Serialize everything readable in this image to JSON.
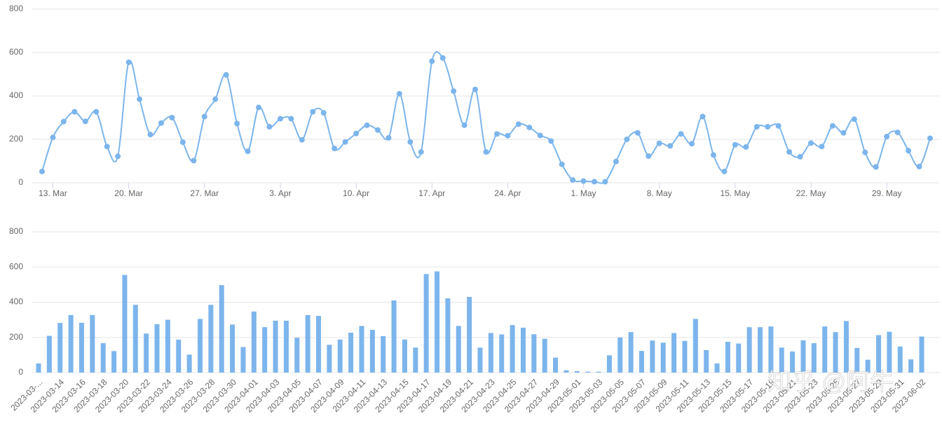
{
  "chart_data": [
    {
      "type": "line",
      "color": "#7cb5ec",
      "grid": true,
      "smooth": true,
      "markers": true,
      "ylim": [
        0,
        800
      ],
      "yticks": [
        0,
        200,
        400,
        600,
        800
      ],
      "xticks": [
        {
          "value": 1,
          "label": "13. Mar"
        },
        {
          "value": 8,
          "label": "20. Mar"
        },
        {
          "value": 15,
          "label": "27. Mar"
        },
        {
          "value": 22,
          "label": "3. Apr"
        },
        {
          "value": 29,
          "label": "10. Apr"
        },
        {
          "value": 36,
          "label": "17. Apr"
        },
        {
          "value": 43,
          "label": "24. Apr"
        },
        {
          "value": 50,
          "label": "1. May"
        },
        {
          "value": 57,
          "label": "8. May"
        },
        {
          "value": 64,
          "label": "15. May"
        },
        {
          "value": 71,
          "label": "22. May"
        },
        {
          "value": 78,
          "label": "29. May"
        }
      ],
      "values": [
        52,
        209,
        282,
        327,
        283,
        327,
        167,
        122,
        555,
        385,
        222,
        275,
        300,
        187,
        102,
        305,
        385,
        497,
        273,
        145,
        347,
        258,
        295,
        295,
        198,
        327,
        322,
        158,
        188,
        227,
        265,
        243,
        207,
        410,
        188,
        142,
        560,
        575,
        422,
        265,
        430,
        142,
        225,
        217,
        270,
        255,
        218,
        192,
        85,
        13,
        8,
        5,
        5,
        98,
        200,
        230,
        123,
        182,
        170,
        225,
        180,
        305,
        128,
        52,
        175,
        165,
        258,
        258,
        262,
        142,
        120,
        183,
        167,
        262,
        230,
        293,
        140,
        73,
        213,
        232,
        148,
        75,
        205
      ]
    },
    {
      "type": "bar",
      "color": "#7cb5ec",
      "grid": true,
      "ylim": [
        0,
        800
      ],
      "yticks": [
        0,
        200,
        400,
        600,
        800
      ],
      "categories": [
        "2023-03-...",
        null,
        "2023-03-14",
        null,
        "2023-03-16",
        null,
        "2023-03-18",
        null,
        "2023-03-20",
        null,
        "2023-03-22",
        null,
        "2023-03-24",
        null,
        "2023-03-26",
        null,
        "2023-03-28",
        null,
        "2023-03-30",
        null,
        "2023-04-01",
        null,
        "2023-04-03",
        null,
        "2023-04-05",
        null,
        "2023-04-07",
        null,
        "2023-04-09",
        null,
        "2023-04-11",
        null,
        "2023-04-13",
        null,
        "2023-04-15",
        null,
        "2023-04-17",
        null,
        "2023-04-19",
        null,
        "2023-04-21",
        null,
        "2023-04-23",
        null,
        "2023-04-25",
        null,
        "2023-04-27",
        null,
        "2023-04-29",
        null,
        "2023-05-01",
        null,
        "2023-05-03",
        null,
        "2023-05-05",
        null,
        "2023-05-07",
        null,
        "2023-05-09",
        null,
        "2023-05-11",
        null,
        "2023-05-13",
        null,
        "2023-05-15",
        null,
        "2023-05-17",
        null,
        "2023-05-19",
        null,
        "2023-05-21",
        null,
        "2023-05-23",
        null,
        "2023-05-25",
        null,
        "2023-05-27",
        null,
        "2023-05-29",
        null,
        "2023-05-31",
        null,
        "2023-06-02"
      ],
      "values": [
        52,
        209,
        282,
        327,
        283,
        327,
        167,
        122,
        555,
        385,
        222,
        275,
        300,
        187,
        102,
        305,
        385,
        497,
        273,
        145,
        347,
        258,
        295,
        295,
        198,
        327,
        322,
        158,
        188,
        227,
        265,
        243,
        207,
        410,
        188,
        142,
        560,
        575,
        422,
        265,
        430,
        142,
        225,
        217,
        270,
        255,
        218,
        192,
        85,
        13,
        8,
        5,
        5,
        98,
        200,
        230,
        123,
        182,
        170,
        225,
        180,
        305,
        128,
        52,
        175,
        165,
        258,
        258,
        262,
        142,
        120,
        183,
        167,
        262,
        230,
        293,
        140,
        73,
        213,
        232,
        148,
        75,
        205
      ],
      "watermark": "知乎 @阿牛"
    }
  ]
}
